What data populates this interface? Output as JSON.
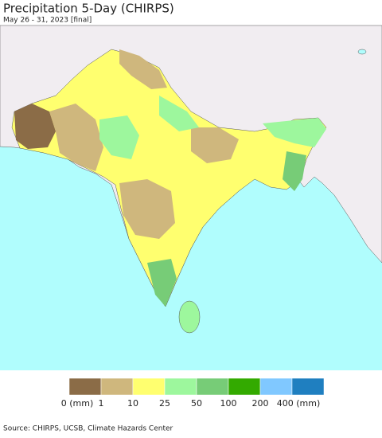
{
  "header": {
    "title": "Precipitation 5-Day (CHIRPS)",
    "subtitle": "May 26 - 31, 2023 [final]"
  },
  "legend": {
    "colors": [
      "#8b6c47",
      "#cfb77d",
      "#ffff6f",
      "#9df79d",
      "#77cc77",
      "#33aa00",
      "#80c8ff",
      "#1f7fc0"
    ],
    "labels": [
      "0 (mm)",
      "1",
      "10",
      "25",
      "50",
      "100",
      "200",
      "400 (mm)"
    ]
  },
  "footer": {
    "source": "Source: CHIRPS, UCSB, Climate Hazards Center"
  }
}
